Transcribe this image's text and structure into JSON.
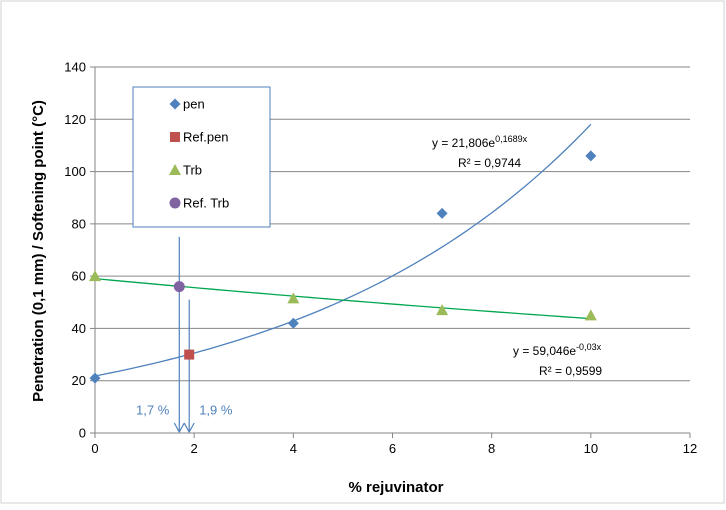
{
  "chart_data": {
    "type": "scatter",
    "xlabel": "% rejuvinator",
    "ylabel": "Penetration (0,1 mm) / Softening point (°C)",
    "xlim": [
      0,
      12
    ],
    "ylim": [
      0,
      140
    ],
    "x_ticks": [
      "0",
      "2",
      "4",
      "6",
      "8",
      "10",
      "12"
    ],
    "y_ticks": [
      "0",
      "20",
      "40",
      "60",
      "80",
      "100",
      "120",
      "140"
    ],
    "grid": "horizontal",
    "legend": "top-left",
    "series": [
      {
        "name": "pen",
        "marker": "diamond",
        "color": "#4f81bd",
        "points": [
          [
            0,
            21
          ],
          [
            4,
            42
          ],
          [
            7,
            84
          ],
          [
            10,
            106
          ]
        ]
      },
      {
        "name": "Ref.pen",
        "marker": "square",
        "color": "#c0504d",
        "points": [
          [
            1.9,
            30
          ]
        ]
      },
      {
        "name": "Trb",
        "marker": "triangle",
        "color": "#9bbb59",
        "points": [
          [
            0,
            60
          ],
          [
            4,
            51.5
          ],
          [
            7,
            47
          ],
          [
            10,
            45
          ]
        ]
      },
      {
        "name": "Ref. Trb",
        "marker": "circle",
        "color": "#8064a2",
        "points": [
          [
            1.7,
            56
          ]
        ]
      }
    ],
    "trendlines": [
      {
        "series": "pen",
        "type": "exponential",
        "a": 21.806,
        "b": 0.1689,
        "color": "#4f81bd",
        "equation_main": "y = 21,806e",
        "equation_exp": "0,1689x",
        "r2": "R² = 0,9744"
      },
      {
        "series": "Trb",
        "type": "exponential",
        "a": 59.046,
        "b": -0.03,
        "color": "#00a650",
        "equation_main": "y = 59,046e",
        "equation_exp": "-0,03x",
        "r2": "R² = 0,9599"
      }
    ],
    "annotations": [
      {
        "label": "1,7 %",
        "x": 1.7,
        "y_from": 75
      },
      {
        "label": "1,9 %",
        "x": 1.9,
        "y_from": 51
      }
    ]
  }
}
